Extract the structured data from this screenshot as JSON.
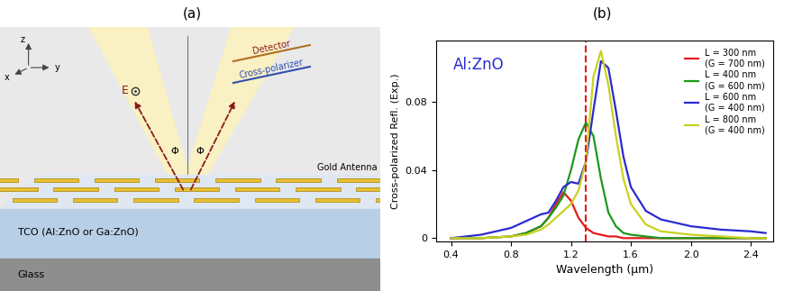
{
  "panel_a": {
    "label": "(a)",
    "axes": [
      "z",
      "x",
      "y"
    ],
    "field": "E",
    "angles": [
      "Φ",
      "Φ"
    ],
    "detector": "Detector",
    "polarizer": "Cross-polarizer",
    "antenna": "Gold Antenna",
    "tco": "TCO (Al:ZnO or Ga:ZnO)",
    "substrate": "Glass"
  },
  "chart_data": {
    "type": "line",
    "label": "(b)",
    "annotation": "Al:ZnO",
    "x_label": "Wavelength (μm)",
    "y_label": "Cross-polarized Refl. (Exp.)",
    "x": [
      0.4,
      0.6,
      0.8,
      0.9,
      1.0,
      1.05,
      1.1,
      1.15,
      1.2,
      1.25,
      1.3,
      1.35,
      1.4,
      1.45,
      1.5,
      1.55,
      1.6,
      1.7,
      1.8,
      2.0,
      2.2,
      2.4,
      2.5
    ],
    "series": [
      {
        "name": "L = 300 nm\n(G = 700 nm)",
        "color": "#e41a1c",
        "line_style": "solid",
        "values": [
          0,
          0,
          0.001,
          0.003,
          0.007,
          0.012,
          0.02,
          0.027,
          0.022,
          0.012,
          0.006,
          0.003,
          0.002,
          0.001,
          0.001,
          0,
          0,
          0,
          0,
          0,
          0,
          0,
          0
        ]
      },
      {
        "name": "L = 400 nm\n(G = 600 nm)",
        "color": "#1a9a1a",
        "line_style": "solid",
        "values": [
          0,
          0,
          0.001,
          0.003,
          0.007,
          0.012,
          0.018,
          0.025,
          0.04,
          0.058,
          0.068,
          0.06,
          0.035,
          0.015,
          0.007,
          0.003,
          0.002,
          0.001,
          0,
          0,
          0,
          0,
          0
        ]
      },
      {
        "name": "L = 600 nm\n(G = 400 nm)",
        "color": "#2a2ad0",
        "line_style": "solid",
        "values": [
          0,
          0.002,
          0.006,
          0.01,
          0.014,
          0.015,
          0.022,
          0.03,
          0.033,
          0.032,
          0.045,
          0.075,
          0.104,
          0.1,
          0.075,
          0.048,
          0.03,
          0.016,
          0.011,
          0.007,
          0.005,
          0.004,
          0.003
        ]
      },
      {
        "name": "L = 800 nm\n(G = 400 nm)",
        "color": "#c8d21e",
        "line_style": "solid",
        "values": [
          0,
          0,
          0.001,
          0.002,
          0.005,
          0.008,
          0.012,
          0.016,
          0.02,
          0.028,
          0.045,
          0.095,
          0.11,
          0.09,
          0.06,
          0.035,
          0.02,
          0.008,
          0.004,
          0.002,
          0.001,
          0,
          0
        ]
      }
    ],
    "reference_line": {
      "x": 1.3,
      "color": "#e41a1c",
      "line_style": "dashed"
    },
    "xlim": [
      0.3,
      2.55
    ],
    "ylim": [
      -0.002,
      0.116
    ],
    "xticks": [
      0.4,
      0.8,
      1.2,
      1.6,
      2.0,
      2.4
    ],
    "yticks": [
      0,
      0.04,
      0.08
    ],
    "legend": "upper right",
    "grid": false
  }
}
